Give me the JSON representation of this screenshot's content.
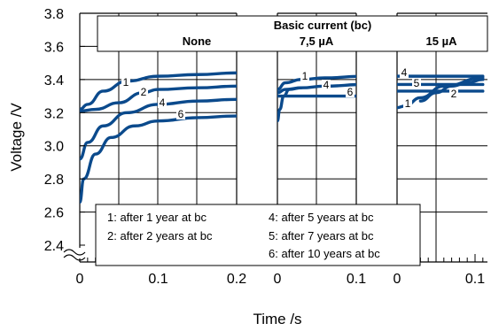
{
  "chart_data": {
    "type": "line",
    "title": "",
    "xlabel": "Time /s",
    "ylabel": "Voltage /V",
    "ylim": [
      2.4,
      3.8
    ],
    "yticks": [
      "3.8",
      "3.6",
      "3.4",
      "3.2",
      "3.0",
      "2.8",
      "2.6",
      "2.4"
    ],
    "grid": true,
    "header": {
      "title": "Basic current (bc)",
      "columns": [
        "None",
        "7,5 µA",
        "15 µA"
      ]
    },
    "legend": {
      "placement": "bottom",
      "entries": [
        "1: after 1 year at bc",
        "2: after 2 years at bc",
        "4: after 5 years at bc",
        "5: after 7 years at bc",
        "6: after 10 years at bc"
      ]
    },
    "panels": [
      {
        "name": "None",
        "xlim": [
          0,
          0.2
        ],
        "xtick_labels": [
          "0",
          "0.1",
          "0.2"
        ],
        "series": [
          {
            "label": "1",
            "x": [
              0,
              0.01,
              0.03,
              0.06,
              0.1,
              0.15,
              0.2
            ],
            "y": [
              3.22,
              3.25,
              3.33,
              3.39,
              3.42,
              3.43,
              3.44
            ]
          },
          {
            "label": "2",
            "x": [
              0,
              0.02,
              0.05,
              0.08,
              0.1,
              0.15,
              0.2
            ],
            "y": [
              3.21,
              3.22,
              3.26,
              3.32,
              3.34,
              3.35,
              3.36
            ]
          },
          {
            "label": "4",
            "x": [
              0,
              0.01,
              0.03,
              0.06,
              0.1,
              0.15,
              0.2
            ],
            "y": [
              2.92,
              3.02,
              3.12,
              3.2,
              3.25,
              3.27,
              3.28
            ]
          },
          {
            "label": "6",
            "x": [
              0,
              0.005,
              0.02,
              0.04,
              0.07,
              0.1,
              0.15,
              0.2
            ],
            "y": [
              2.66,
              2.8,
              2.95,
              3.05,
              3.12,
              3.15,
              3.17,
              3.18
            ]
          }
        ]
      },
      {
        "name": "7,5 µA",
        "xlim": [
          0,
          0.11
        ],
        "xtick_labels": [
          "0",
          "0.1"
        ],
        "series": [
          {
            "label": "1",
            "x": [
              0,
              0.01,
              0.03,
              0.06,
              0.11
            ],
            "y": [
              3.34,
              3.38,
              3.4,
              3.41,
              3.42
            ]
          },
          {
            "label": "4",
            "x": [
              0,
              0.01,
              0.03,
              0.06,
              0.11
            ],
            "y": [
              3.32,
              3.34,
              3.35,
              3.36,
              3.37
            ]
          },
          {
            "label": "6",
            "x": [
              0,
              0.03,
              0.06,
              0.11
            ],
            "y": [
              3.3,
              3.3,
              3.3,
              3.3
            ]
          },
          {
            "label": "",
            "x": [
              0,
              0.003,
              0.008,
              0.015,
              0.03
            ],
            "y": [
              3.15,
              3.22,
              3.3,
              3.34,
              3.35
            ]
          }
        ]
      },
      {
        "name": "15 µA",
        "xlim": [
          0,
          0.11
        ],
        "xtick_labels": [
          "0",
          "0.1"
        ],
        "series": [
          {
            "label": "4",
            "x": [
              0,
              0.05,
              0.11
            ],
            "y": [
              3.42,
              3.42,
              3.42
            ]
          },
          {
            "label": "5",
            "x": [
              0,
              0.05,
              0.11
            ],
            "y": [
              3.37,
              3.37,
              3.37
            ]
          },
          {
            "label": "",
            "x": [
              0,
              0.05,
              0.11
            ],
            "y": [
              3.33,
              3.33,
              3.33
            ]
          },
          {
            "label": "2",
            "x": [
              0.03,
              0.05,
              0.07,
              0.09,
              0.11
            ],
            "y": [
              3.27,
              3.32,
              3.36,
              3.38,
              3.4
            ]
          },
          {
            "label": "1",
            "x": [
              0,
              0.01,
              0.03,
              0.06,
              0.11
            ],
            "y": [
              3.23,
              3.24,
              3.29,
              3.36,
              3.41
            ]
          }
        ]
      }
    ]
  }
}
